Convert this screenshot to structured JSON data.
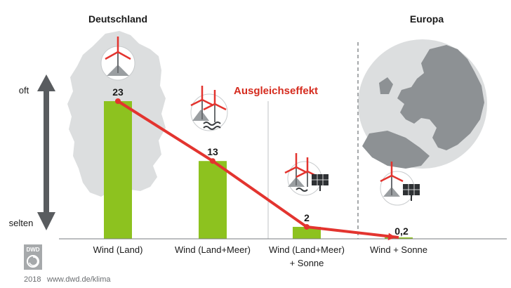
{
  "chart_data": {
    "type": "bar",
    "categories": [
      "Wind (Land)",
      "Wind (Land+Meer)",
      "Wind (Land+Meer)",
      "Wind + Sonne"
    ],
    "category_second_line": [
      "",
      "",
      "+ Sonne",
      ""
    ],
    "values": [
      23,
      13,
      2,
      0.2
    ],
    "value_labels": [
      "23",
      "13",
      "2",
      "0,2"
    ],
    "ylim": [
      0,
      25
    ],
    "y_axis_top_label": "oft",
    "y_axis_bottom_label": "selten",
    "region_labels": [
      "Deutschland",
      "Europa"
    ],
    "annotation": "Ausgleichseffekt",
    "grid": false,
    "colors": {
      "bar": "#8dc21f",
      "trend": "#e3342f",
      "annotation": "#d52b1e",
      "map": "#dcdedf",
      "globe": "#8d9194",
      "arrow": "#595c5f"
    }
  },
  "footer": {
    "logo_text": "DWD",
    "year": "2018",
    "url": "www.dwd.de/klima"
  },
  "icons": [
    "wind-turbine-icon",
    "offshore-wind-icon",
    "solar-panel-icon",
    "germany-map-icon",
    "europe-globe-icon",
    "dwd-logo-icon"
  ]
}
